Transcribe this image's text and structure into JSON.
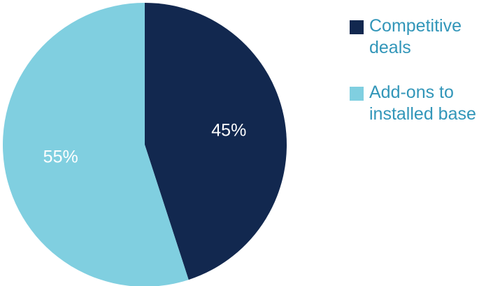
{
  "chart_data": {
    "type": "pie",
    "title": "",
    "slices": [
      {
        "label": "Competitive deals",
        "value": 45,
        "display": "45%",
        "color": "#12284f"
      },
      {
        "label": "Add-ons to installed base",
        "value": 55,
        "display": "55%",
        "color": "#80cfe0"
      }
    ],
    "start_angle": "12 o'clock",
    "direction": "clockwise",
    "legend_position": "right"
  },
  "legend": {
    "items": [
      {
        "label": "Competitive deals",
        "color": "#12284f"
      },
      {
        "label": "Add-ons to installed base",
        "color": "#80cfe0"
      }
    ]
  }
}
